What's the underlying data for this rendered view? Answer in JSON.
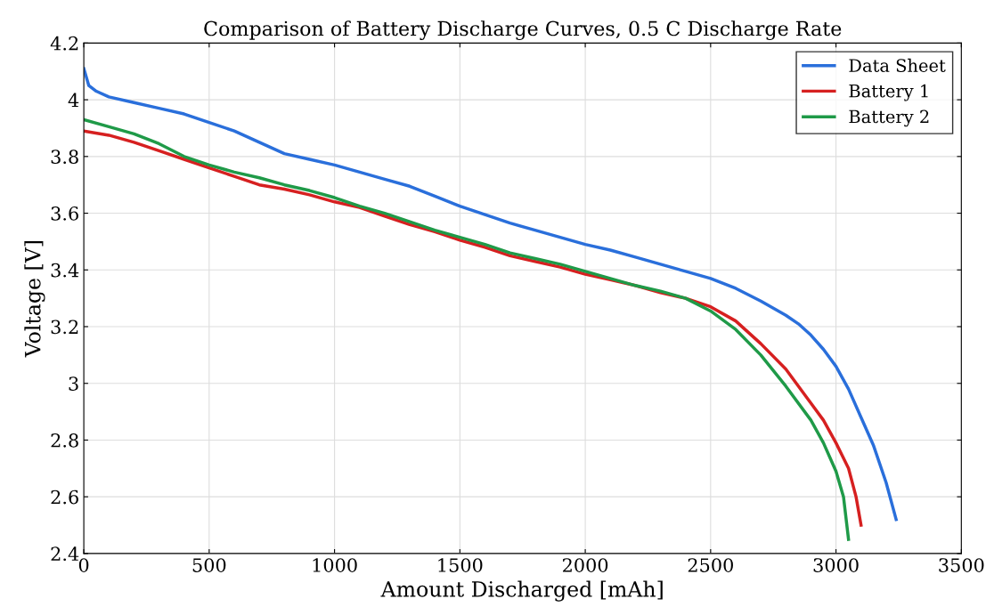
{
  "chart_data": {
    "type": "line",
    "title": "Comparison of Battery Discharge Curves, 0.5 C Discharge Rate",
    "xlabel": "Amount Discharged [mAh]",
    "ylabel": "Voltage [V]",
    "xlim": [
      0,
      3500
    ],
    "xticks": [
      0,
      500,
      1000,
      1500,
      2000,
      2500,
      3000,
      3500
    ],
    "ylim": [
      2.4,
      4.2
    ],
    "yticks": [
      2.4,
      2.6,
      2.8,
      3,
      3.2,
      3.4,
      3.6,
      3.8,
      4,
      4.2
    ],
    "grid": true,
    "legend": "top right",
    "marker": "none",
    "line_style": "solid",
    "series": [
      {
        "name": "Data Sheet",
        "color": "#2a6fdb",
        "x": [
          0,
          20,
          50,
          100,
          200,
          300,
          400,
          500,
          600,
          700,
          800,
          900,
          1000,
          1100,
          1200,
          1300,
          1400,
          1500,
          1600,
          1700,
          1800,
          1900,
          2000,
          2100,
          2200,
          2300,
          2400,
          2500,
          2600,
          2700,
          2800,
          2850,
          2900,
          2950,
          3000,
          3050,
          3100,
          3150,
          3200,
          3240
        ],
        "values": [
          4.11,
          4.05,
          4.03,
          4.01,
          3.99,
          3.97,
          3.95,
          3.92,
          3.89,
          3.85,
          3.81,
          3.79,
          3.77,
          3.745,
          3.72,
          3.695,
          3.66,
          3.625,
          3.595,
          3.565,
          3.54,
          3.515,
          3.49,
          3.47,
          3.445,
          3.42,
          3.395,
          3.37,
          3.335,
          3.29,
          3.24,
          3.21,
          3.17,
          3.12,
          3.06,
          2.98,
          2.88,
          2.78,
          2.65,
          2.52
        ]
      },
      {
        "name": "Battery 1",
        "color": "#d62020",
        "x": [
          0,
          100,
          200,
          300,
          400,
          500,
          600,
          700,
          800,
          900,
          1000,
          1100,
          1200,
          1300,
          1400,
          1500,
          1600,
          1700,
          1800,
          1900,
          2000,
          2100,
          2200,
          2300,
          2400,
          2500,
          2600,
          2700,
          2800,
          2900,
          2950,
          3000,
          3050,
          3080,
          3100
        ],
        "values": [
          3.89,
          3.875,
          3.85,
          3.82,
          3.79,
          3.76,
          3.73,
          3.7,
          3.685,
          3.665,
          3.64,
          3.62,
          3.59,
          3.56,
          3.535,
          3.505,
          3.48,
          3.45,
          3.43,
          3.41,
          3.385,
          3.365,
          3.345,
          3.32,
          3.3,
          3.27,
          3.22,
          3.14,
          3.05,
          2.93,
          2.87,
          2.79,
          2.7,
          2.6,
          2.5
        ]
      },
      {
        "name": "Battery 2",
        "color": "#1f9a48",
        "x": [
          0,
          100,
          200,
          300,
          400,
          500,
          600,
          700,
          800,
          900,
          1000,
          1100,
          1200,
          1300,
          1400,
          1500,
          1600,
          1700,
          1800,
          1900,
          2000,
          2100,
          2200,
          2300,
          2400,
          2500,
          2600,
          2700,
          2800,
          2900,
          2950,
          3000,
          3030,
          3050
        ],
        "values": [
          3.93,
          3.905,
          3.88,
          3.845,
          3.8,
          3.77,
          3.745,
          3.725,
          3.7,
          3.68,
          3.655,
          3.625,
          3.6,
          3.57,
          3.54,
          3.515,
          3.49,
          3.46,
          3.44,
          3.42,
          3.395,
          3.37,
          3.345,
          3.325,
          3.3,
          3.255,
          3.19,
          3.1,
          2.99,
          2.87,
          2.79,
          2.69,
          2.6,
          2.45
        ]
      }
    ]
  }
}
